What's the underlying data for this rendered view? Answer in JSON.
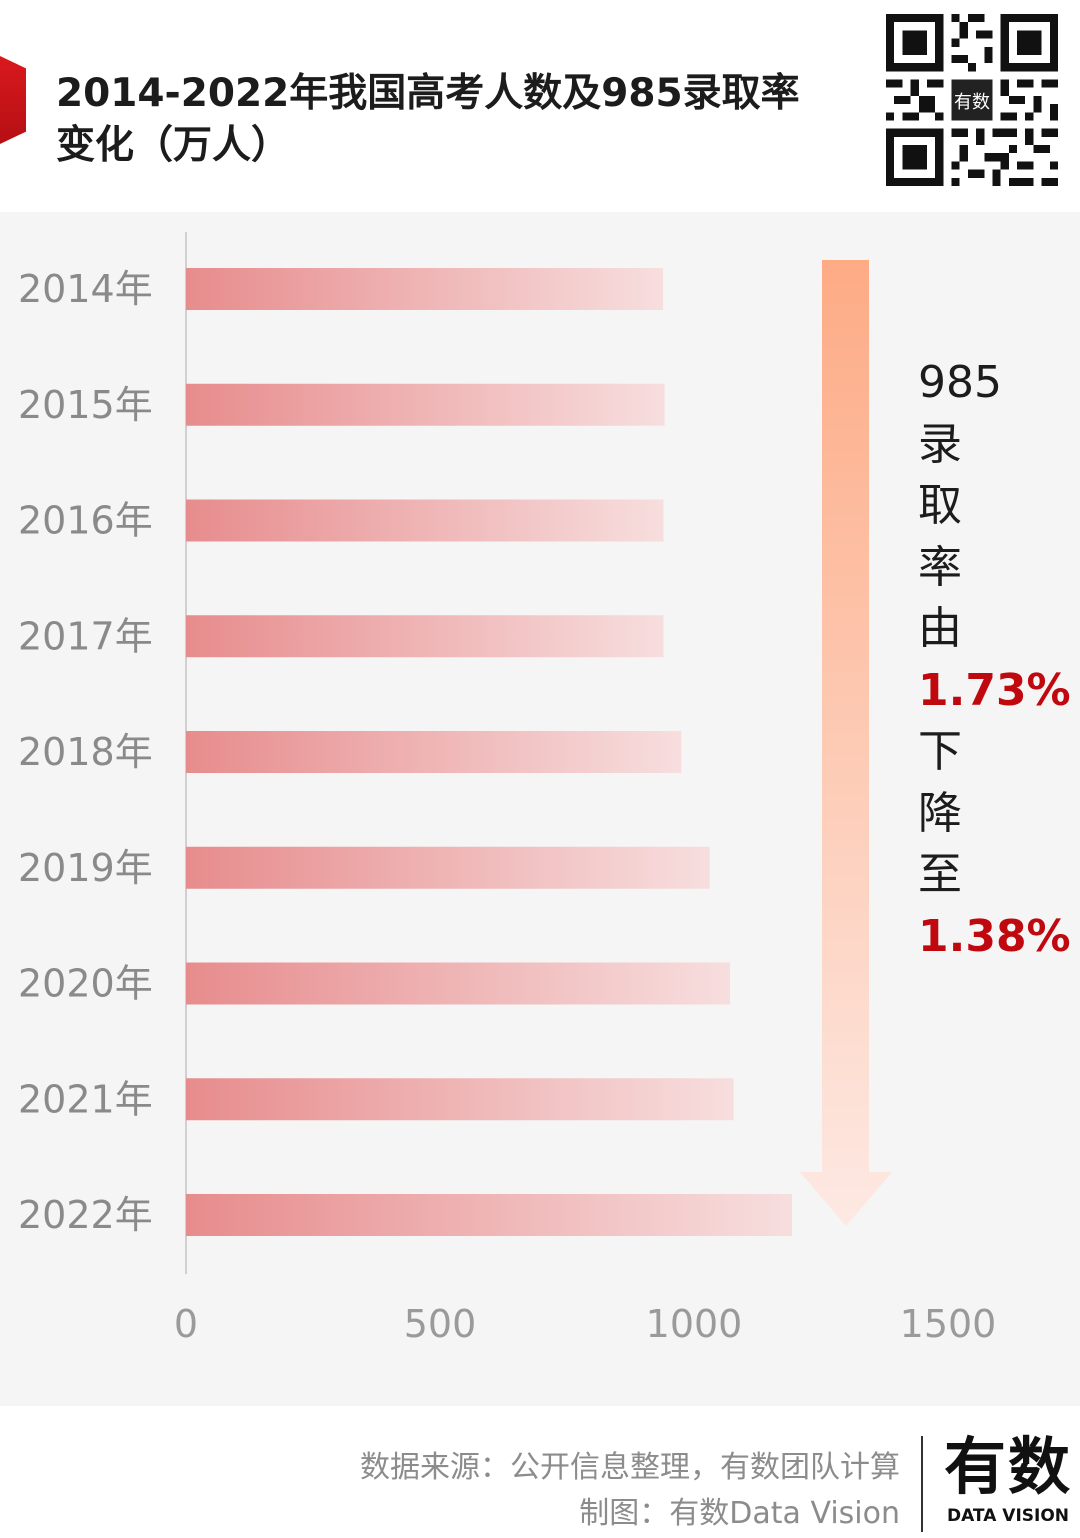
{
  "title": "2014-2022年我国高考人数及985录取率变化（万人）",
  "annotation": {
    "lines": [
      "985",
      "录",
      "取",
      "率",
      "由",
      "1.73%",
      "下",
      "降",
      "至",
      "1.38%"
    ],
    "highlight_color": "#c0080f"
  },
  "colors": {
    "bar_start": "#e78c8d",
    "bar_end": "#f7dede",
    "arrow_top": "#fdab85",
    "arrow_bottom": "#fde9e3",
    "accent": "#d9191e",
    "background": "#f5f5f5"
  },
  "chart_data": {
    "type": "bar",
    "orientation": "horizontal",
    "categories": [
      "2014年",
      "2015年",
      "2016年",
      "2017年",
      "2018年",
      "2019年",
      "2020年",
      "2021年",
      "2022年"
    ],
    "values": [
      939,
      942,
      940,
      940,
      975,
      1031,
      1071,
      1078,
      1193
    ],
    "xlim": [
      0,
      1500
    ],
    "xticks": [
      "0",
      "500",
      "1000",
      "1500"
    ],
    "xlabel": "",
    "ylabel": "",
    "grid": false,
    "legend": "none"
  },
  "footer": {
    "source": "数据来源：公开信息整理，有数团队计算",
    "maker": "制图：有数Data Vision",
    "logo_cn": "有数",
    "logo_en": "DATA VISION"
  }
}
